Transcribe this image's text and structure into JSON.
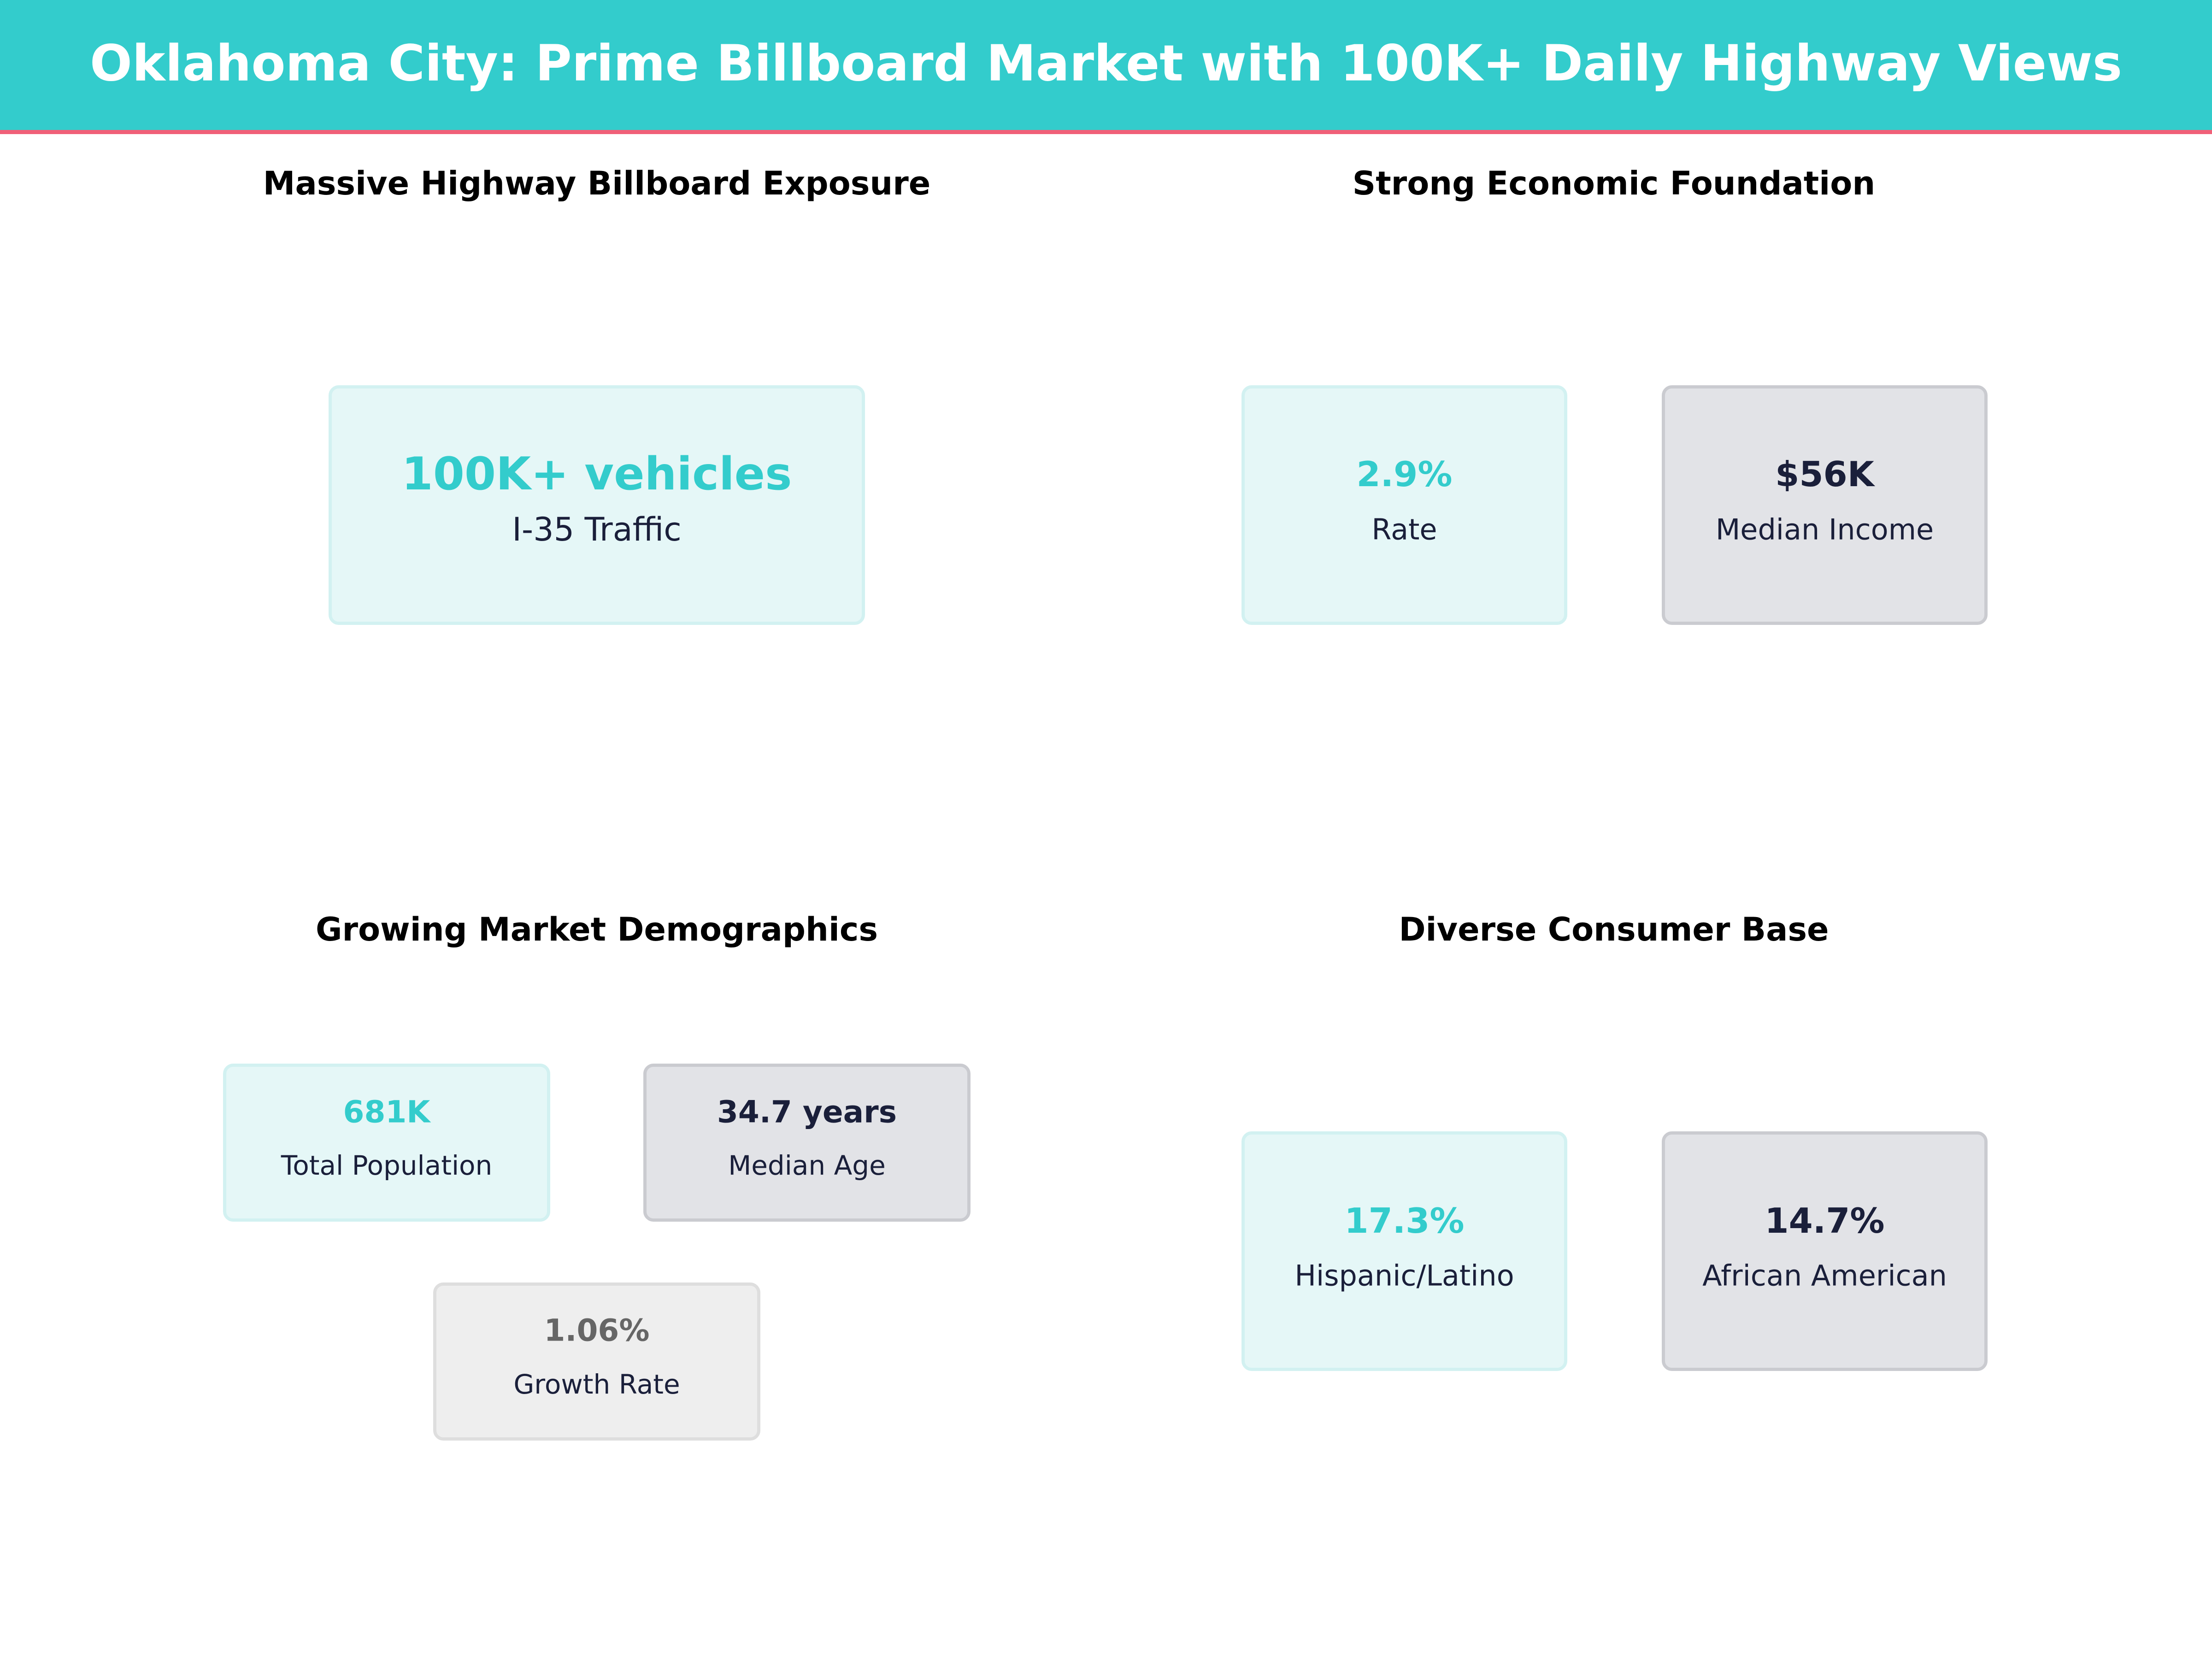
{
  "header": {
    "title": "Oklahoma City: Prime Billboard Market with 100K+ Daily Highway Views"
  },
  "colors": {
    "accent": "#33CCCC",
    "header_border": "#F06078",
    "dark_text": "#1A1F3A",
    "teal_card_bg": "#E5F7F7",
    "gray_card_bg": "#E2E3E7",
    "light_card_bg": "#EEEEEE"
  },
  "sections": {
    "exposure": {
      "title": "Massive Highway Billboard Exposure",
      "cards": [
        {
          "value": "100K+ vehicles",
          "label": "I-35 Traffic"
        }
      ]
    },
    "economic": {
      "title": "Strong Economic Foundation",
      "cards": [
        {
          "value": "2.9%",
          "label": "Rate"
        },
        {
          "value": "$56K",
          "label": "Median Income"
        }
      ]
    },
    "demographics": {
      "title": "Growing Market Demographics",
      "cards": [
        {
          "value": "681K",
          "label": "Total Population"
        },
        {
          "value": "34.7 years",
          "label": "Median Age"
        },
        {
          "value": "1.06%",
          "label": "Growth Rate"
        }
      ]
    },
    "diversity": {
      "title": "Diverse Consumer Base",
      "cards": [
        {
          "value": "17.3%",
          "label": "Hispanic/Latino"
        },
        {
          "value": "14.7%",
          "label": "African American"
        }
      ]
    }
  }
}
